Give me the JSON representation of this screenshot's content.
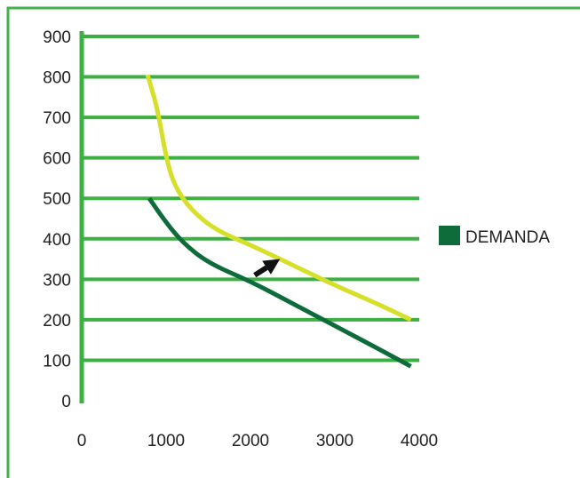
{
  "chart_data": {
    "type": "line",
    "title": "",
    "xlabel": "",
    "ylabel": "",
    "xlim": [
      0,
      4000
    ],
    "ylim": [
      0,
      900
    ],
    "x_ticks": [
      "0",
      "1000",
      "2000",
      "3000",
      "4000"
    ],
    "y_ticks": [
      "0",
      "100",
      "200",
      "300",
      "400",
      "500",
      "600",
      "700",
      "800",
      "900"
    ],
    "grid": "horizontal",
    "legend_position": "right",
    "series": [
      {
        "name": "DEMANDA",
        "color": "#0e6b3a",
        "points": [
          {
            "x": 800,
            "y": 500
          },
          {
            "x": 1000,
            "y": 440
          },
          {
            "x": 1200,
            "y": 390
          },
          {
            "x": 1500,
            "y": 340
          },
          {
            "x": 2000,
            "y": 295
          },
          {
            "x": 2500,
            "y": 240
          },
          {
            "x": 3000,
            "y": 185
          },
          {
            "x": 3500,
            "y": 130
          },
          {
            "x": 3900,
            "y": 85
          }
        ]
      },
      {
        "color": "#d6df2a",
        "points": [
          {
            "x": 780,
            "y": 805
          },
          {
            "x": 900,
            "y": 720
          },
          {
            "x": 1000,
            "y": 600
          },
          {
            "x": 1100,
            "y": 530
          },
          {
            "x": 1300,
            "y": 470
          },
          {
            "x": 1600,
            "y": 420
          },
          {
            "x": 2000,
            "y": 385
          },
          {
            "x": 2500,
            "y": 335
          },
          {
            "x": 3000,
            "y": 285
          },
          {
            "x": 3500,
            "y": 240
          },
          {
            "x": 3900,
            "y": 200
          }
        ]
      }
    ],
    "annotations": [
      {
        "type": "arrow",
        "from": {
          "x": 2050,
          "y": 310
        },
        "to": {
          "x": 2350,
          "y": 350
        },
        "color": "#111111"
      }
    ],
    "colors": {
      "frame": "#44b04a",
      "grid": "#3cb043",
      "axis": "#3cb043"
    }
  }
}
